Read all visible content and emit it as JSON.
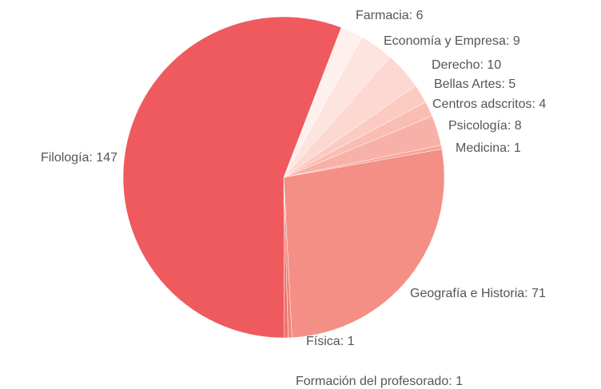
{
  "chart_data": {
    "type": "pie",
    "values": [
      6,
      9,
      10,
      5,
      4,
      8,
      1,
      71,
      1,
      1,
      147
    ],
    "value_labels": [
      "Farmacia: 6",
      "Economía y Empresa: 9",
      "Derecho: 10",
      "Bellas Artes: 5",
      "Centros adscritos: 4",
      "Psicología: 8",
      "Medicina: 1",
      "Geografía e Historia: 71",
      "Física: 1",
      "Formación del profesorado: 1",
      "Filología: 147"
    ],
    "colors": [
      "#fef1ed",
      "#fde4de",
      "#fcd8d0",
      "#fbcbc2",
      "#f9bdb4",
      "#f8b1a8",
      "#f6a398",
      "#f48f86",
      "#f38378",
      "#f1726d",
      "#ef5a5e"
    ]
  }
}
